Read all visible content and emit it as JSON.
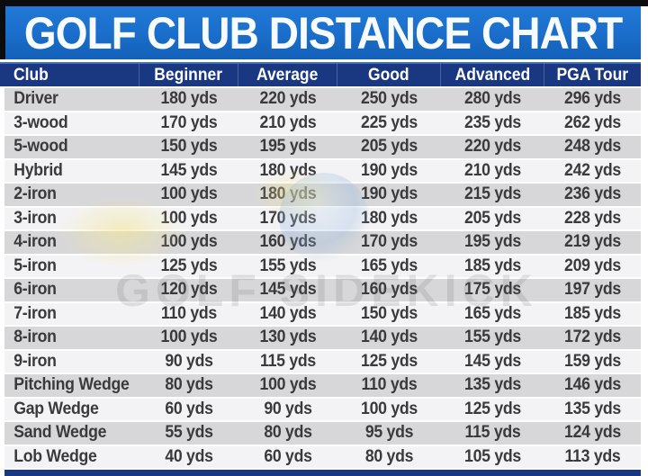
{
  "title": "GOLF CLUB DISTANCE CHART",
  "watermark": {
    "text": "GOLF SIDEKICK"
  },
  "unit": "yds",
  "colors": {
    "title_bar_blue": "#1c70cd",
    "header_navy": "#1a3781",
    "row_gray": "#d7d7d9",
    "row_white": "#f3f3f5",
    "border_black": "#0c0c0e",
    "text_dark": "#3a3a3c",
    "text_white": "#ffffff"
  },
  "table": {
    "columns": [
      "Club",
      "Beginner",
      "Average",
      "Good",
      "Advanced",
      "PGA Tour"
    ],
    "rows": [
      [
        "Driver",
        "180 yds",
        "220 yds",
        "250 yds",
        "280 yds",
        "296 yds"
      ],
      [
        "3-wood",
        "170 yds",
        "210 yds",
        "225 yds",
        "235 yds",
        "262 yds"
      ],
      [
        "5-wood",
        "150 yds",
        "195 yds",
        "205 yds",
        "220 yds",
        "248 yds"
      ],
      [
        "Hybrid",
        "145 yds",
        "180 yds",
        "190 yds",
        "210 yds",
        "242 yds"
      ],
      [
        "2-iron",
        "100 yds",
        "180 yds",
        "190 yds",
        "215 yds",
        "236 yds"
      ],
      [
        "3-iron",
        "100 yds",
        "170 yds",
        "180 yds",
        "205 yds",
        "228 yds"
      ],
      [
        "4-iron",
        "100 yds",
        "160 yds",
        "170 yds",
        "195 yds",
        "219 yds"
      ],
      [
        "5-iron",
        "125 yds",
        "155 yds",
        "165 yds",
        "185 yds",
        "209 yds"
      ],
      [
        "6-iron",
        "120 yds",
        "145 yds",
        "160 yds",
        "175 yds",
        "197 yds"
      ],
      [
        "7-iron",
        "110 yds",
        "140 yds",
        "150 yds",
        "165 yds",
        "185 yds"
      ],
      [
        "8-iron",
        "100 yds",
        "130 yds",
        "140 yds",
        "155 yds",
        "172 yds"
      ],
      [
        "9-iron",
        "90 yds",
        "115 yds",
        "125 yds",
        "145 yds",
        "159 yds"
      ],
      [
        "Pitching Wedge",
        "80 yds",
        "100 yds",
        "110 yds",
        "135 yds",
        "146 yds"
      ],
      [
        "Gap Wedge",
        "60 yds",
        "90 yds",
        "100 yds",
        "125 yds",
        "135 yds"
      ],
      [
        "Sand Wedge",
        "55 yds",
        "80 yds",
        "95 yds",
        "115 yds",
        "124 yds"
      ],
      [
        "Lob Wedge",
        "40 yds",
        "60 yds",
        "80 yds",
        "105 yds",
        "113 yds"
      ]
    ]
  },
  "chart_data": {
    "type": "table",
    "title": "GOLF CLUB DISTANCE CHART",
    "unit": "yds",
    "categories": [
      "Driver",
      "3-wood",
      "5-wood",
      "Hybrid",
      "2-iron",
      "3-iron",
      "4-iron",
      "5-iron",
      "6-iron",
      "7-iron",
      "8-iron",
      "9-iron",
      "Pitching Wedge",
      "Gap Wedge",
      "Sand Wedge",
      "Lob Wedge"
    ],
    "series": [
      {
        "name": "Beginner",
        "values": [
          180,
          170,
          150,
          145,
          100,
          100,
          100,
          125,
          120,
          110,
          100,
          90,
          80,
          60,
          55,
          40
        ]
      },
      {
        "name": "Average",
        "values": [
          220,
          210,
          195,
          180,
          180,
          170,
          160,
          155,
          145,
          140,
          130,
          115,
          100,
          90,
          80,
          60
        ]
      },
      {
        "name": "Good",
        "values": [
          250,
          225,
          205,
          190,
          190,
          180,
          170,
          165,
          160,
          150,
          140,
          125,
          110,
          100,
          95,
          80
        ]
      },
      {
        "name": "Advanced",
        "values": [
          280,
          235,
          220,
          210,
          215,
          205,
          195,
          185,
          175,
          165,
          155,
          145,
          135,
          125,
          115,
          105
        ]
      },
      {
        "name": "PGA Tour",
        "values": [
          296,
          262,
          248,
          242,
          236,
          228,
          219,
          209,
          197,
          185,
          172,
          159,
          146,
          135,
          124,
          113
        ]
      }
    ]
  }
}
